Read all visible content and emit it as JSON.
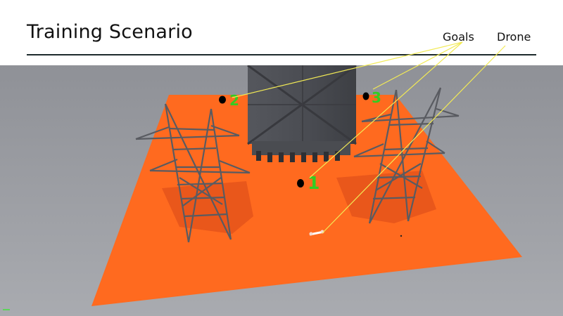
{
  "slide": {
    "title": "Training Scenario"
  },
  "legend": {
    "goals_label": "Goals",
    "drone_label": "Drone"
  },
  "scene": {
    "goals": [
      {
        "number": "1"
      },
      {
        "number": "2"
      },
      {
        "number": "3"
      }
    ],
    "colors": {
      "ground": "#9a9ca2",
      "platform": "#ff6a1f",
      "tower": "#4d4f55",
      "goal_marker": "#000000",
      "goal_label": "#33cc22",
      "callout_line": "#f2ea55"
    }
  }
}
